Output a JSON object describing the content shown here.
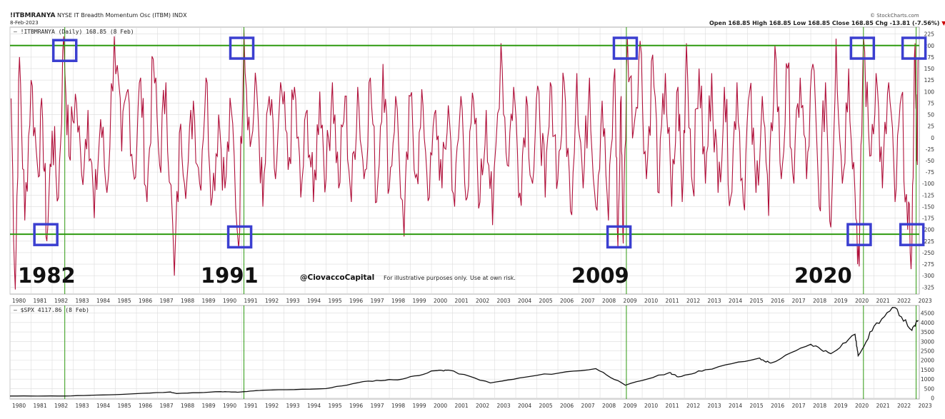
{
  "header": {
    "symbol": "!ITBMRANYA",
    "description": "NYSE IT Breadth Momentum Osc (ITBM) INDX",
    "date": "8-Feb-2023",
    "brand": "© StockCharts.com",
    "ohlc": "Open 168.85  High 168.85  Low 168.85  Close 168.85  Chg -13.81 (-7.56%)",
    "chg_arrow": "▼"
  },
  "colors": {
    "osc_line": "#b0103a",
    "green_line": "#2e9a10",
    "box": "#3b3fd0",
    "grid": "#dcdcdc",
    "spx_line": "#111111"
  },
  "chart_data": [
    {
      "type": "line",
      "legend": "!ITBMRANYA (Daily) 168.85 (8 Feb)",
      "ylim": [
        -340,
        240
      ],
      "yticks": [
        225,
        200,
        175,
        150,
        125,
        100,
        75,
        50,
        25,
        0,
        -25,
        -50,
        -75,
        -100,
        -125,
        -150,
        -175,
        -200,
        -225,
        -250,
        -275,
        -300,
        -325
      ],
      "xlim": [
        1980.0,
        2023.15
      ],
      "xticks": [
        "1980",
        "1981",
        "1982",
        "1983",
        "1984",
        "1985",
        "1986",
        "1987",
        "1988",
        "1989",
        "1990",
        "1991",
        "1992",
        "1993",
        "1994",
        "1995",
        "1996",
        "1997",
        "1998",
        "1999",
        "2000",
        "2001",
        "2002",
        "2003",
        "2004",
        "2005",
        "2006",
        "2007",
        "2008",
        "2009",
        "2010",
        "2011",
        "2012",
        "2013",
        "2014",
        "2015",
        "2016",
        "2017",
        "2018",
        "2019",
        "2020",
        "2021",
        "2022",
        "2023"
      ],
      "hlines": [
        200,
        -210
      ],
      "vlines": [
        1982.6,
        1991.1,
        2009.25,
        2020.5,
        2023.0
      ],
      "highlight_boxes": [
        {
          "x": 1982.6,
          "y": 190
        },
        {
          "x": 1991.0,
          "y": 195
        },
        {
          "x": 2009.2,
          "y": 195
        },
        {
          "x": 2020.45,
          "y": 195
        },
        {
          "x": 2022.9,
          "y": 195
        },
        {
          "x": 1981.7,
          "y": -210
        },
        {
          "x": 1990.9,
          "y": -215
        },
        {
          "x": 2008.9,
          "y": -215
        },
        {
          "x": 2020.3,
          "y": -210
        },
        {
          "x": 2022.8,
          "y": -210
        }
      ],
      "peaks": [
        {
          "x": 1980.05,
          "y": 85
        },
        {
          "x": 1980.25,
          "y": -330
        },
        {
          "x": 1980.45,
          "y": 175
        },
        {
          "x": 1980.7,
          "y": -180
        },
        {
          "x": 1981.0,
          "y": 125
        },
        {
          "x": 1981.3,
          "y": -60
        },
        {
          "x": 1981.55,
          "y": 40
        },
        {
          "x": 1981.75,
          "y": -225
        },
        {
          "x": 1982.0,
          "y": 15
        },
        {
          "x": 1982.3,
          "y": -130
        },
        {
          "x": 1982.55,
          "y": 220
        },
        {
          "x": 1982.8,
          "y": -40
        },
        {
          "x": 1983.1,
          "y": 95
        },
        {
          "x": 1983.4,
          "y": -80
        },
        {
          "x": 1983.7,
          "y": 60
        },
        {
          "x": 1984.0,
          "y": -175
        },
        {
          "x": 1984.3,
          "y": 40
        },
        {
          "x": 1984.6,
          "y": -120
        },
        {
          "x": 1984.95,
          "y": 220
        },
        {
          "x": 1985.3,
          "y": -30
        },
        {
          "x": 1985.6,
          "y": 105
        },
        {
          "x": 1985.9,
          "y": -90
        },
        {
          "x": 1986.2,
          "y": 130
        },
        {
          "x": 1986.5,
          "y": -140
        },
        {
          "x": 1986.8,
          "y": 170
        },
        {
          "x": 1987.1,
          "y": -60
        },
        {
          "x": 1987.4,
          "y": 120
        },
        {
          "x": 1987.8,
          "y": -300
        },
        {
          "x": 1988.1,
          "y": 30
        },
        {
          "x": 1988.4,
          "y": -90
        },
        {
          "x": 1988.7,
          "y": 80
        },
        {
          "x": 1989.0,
          "y": -100
        },
        {
          "x": 1989.3,
          "y": 130
        },
        {
          "x": 1989.6,
          "y": -130
        },
        {
          "x": 1989.9,
          "y": 50
        },
        {
          "x": 1990.2,
          "y": -110
        },
        {
          "x": 1990.5,
          "y": 60
        },
        {
          "x": 1990.85,
          "y": -240
        },
        {
          "x": 1991.1,
          "y": 235
        },
        {
          "x": 1991.4,
          "y": -20
        },
        {
          "x": 1991.7,
          "y": 110
        },
        {
          "x": 1992.0,
          "y": -150
        },
        {
          "x": 1992.3,
          "y": 90
        },
        {
          "x": 1992.6,
          "y": -90
        },
        {
          "x": 1992.9,
          "y": 100
        },
        {
          "x": 1993.2,
          "y": -70
        },
        {
          "x": 1993.5,
          "y": 110
        },
        {
          "x": 1993.8,
          "y": -130
        },
        {
          "x": 1994.1,
          "y": 60
        },
        {
          "x": 1994.4,
          "y": -140
        },
        {
          "x": 1994.7,
          "y": 100
        },
        {
          "x": 1995.0,
          "y": -90
        },
        {
          "x": 1995.3,
          "y": 120
        },
        {
          "x": 1995.6,
          "y": -110
        },
        {
          "x": 1995.9,
          "y": 90
        },
        {
          "x": 1996.2,
          "y": -140
        },
        {
          "x": 1996.5,
          "y": 110
        },
        {
          "x": 1996.8,
          "y": -90
        },
        {
          "x": 1997.1,
          "y": 130
        },
        {
          "x": 1997.4,
          "y": -140
        },
        {
          "x": 1997.7,
          "y": 160
        },
        {
          "x": 1998.0,
          "y": -110
        },
        {
          "x": 1998.3,
          "y": 90
        },
        {
          "x": 1998.7,
          "y": -215
        },
        {
          "x": 1999.0,
          "y": 90
        },
        {
          "x": 1999.3,
          "y": -80
        },
        {
          "x": 1999.6,
          "y": 70
        },
        {
          "x": 1999.9,
          "y": -130
        },
        {
          "x": 2000.2,
          "y": 60
        },
        {
          "x": 2000.5,
          "y": -110
        },
        {
          "x": 2000.8,
          "y": 70
        },
        {
          "x": 2001.1,
          "y": -150
        },
        {
          "x": 2001.4,
          "y": 90
        },
        {
          "x": 2001.7,
          "y": -130
        },
        {
          "x": 2002.0,
          "y": 80
        },
        {
          "x": 2002.3,
          "y": -140
        },
        {
          "x": 2002.6,
          "y": 60
        },
        {
          "x": 2002.9,
          "y": -190
        },
        {
          "x": 2003.3,
          "y": 205
        },
        {
          "x": 2003.6,
          "y": -60
        },
        {
          "x": 2003.9,
          "y": 110
        },
        {
          "x": 2004.2,
          "y": -120
        },
        {
          "x": 2004.5,
          "y": 90
        },
        {
          "x": 2004.8,
          "y": -100
        },
        {
          "x": 2005.1,
          "y": 100
        },
        {
          "x": 2005.4,
          "y": -130
        },
        {
          "x": 2005.7,
          "y": 110
        },
        {
          "x": 2006.0,
          "y": -90
        },
        {
          "x": 2006.3,
          "y": 120
        },
        {
          "x": 2006.6,
          "y": -160
        },
        {
          "x": 2006.9,
          "y": 140
        },
        {
          "x": 2007.2,
          "y": -110
        },
        {
          "x": 2007.5,
          "y": 130
        },
        {
          "x": 2007.8,
          "y": -150
        },
        {
          "x": 2008.1,
          "y": 80
        },
        {
          "x": 2008.4,
          "y": -180
        },
        {
          "x": 2008.7,
          "y": 150
        },
        {
          "x": 2008.85,
          "y": -240
        },
        {
          "x": 2009.0,
          "y": 90
        },
        {
          "x": 2009.1,
          "y": -230
        },
        {
          "x": 2009.3,
          "y": 215
        },
        {
          "x": 2009.6,
          "y": 20
        },
        {
          "x": 2009.9,
          "y": 210
        },
        {
          "x": 2010.2,
          "y": -90
        },
        {
          "x": 2010.5,
          "y": 180
        },
        {
          "x": 2010.8,
          "y": -120
        },
        {
          "x": 2011.1,
          "y": 140
        },
        {
          "x": 2011.4,
          "y": -150
        },
        {
          "x": 2011.7,
          "y": 110
        },
        {
          "x": 2011.9,
          "y": -140
        },
        {
          "x": 2012.1,
          "y": 205
        },
        {
          "x": 2012.4,
          "y": -110
        },
        {
          "x": 2012.7,
          "y": 150
        },
        {
          "x": 2013.0,
          "y": -100
        },
        {
          "x": 2013.3,
          "y": 140
        },
        {
          "x": 2013.6,
          "y": -120
        },
        {
          "x": 2013.9,
          "y": 110
        },
        {
          "x": 2014.2,
          "y": -130
        },
        {
          "x": 2014.5,
          "y": 120
        },
        {
          "x": 2014.8,
          "y": -140
        },
        {
          "x": 2015.1,
          "y": 100
        },
        {
          "x": 2015.4,
          "y": -120
        },
        {
          "x": 2015.7,
          "y": 90
        },
        {
          "x": 2016.0,
          "y": -170
        },
        {
          "x": 2016.3,
          "y": 200
        },
        {
          "x": 2016.6,
          "y": -90
        },
        {
          "x": 2016.9,
          "y": 150
        },
        {
          "x": 2017.2,
          "y": -100
        },
        {
          "x": 2017.5,
          "y": 130
        },
        {
          "x": 2017.8,
          "y": -90
        },
        {
          "x": 2018.1,
          "y": 160
        },
        {
          "x": 2018.4,
          "y": -150
        },
        {
          "x": 2018.7,
          "y": 120
        },
        {
          "x": 2018.95,
          "y": -195
        },
        {
          "x": 2019.2,
          "y": 215
        },
        {
          "x": 2019.5,
          "y": -100
        },
        {
          "x": 2019.8,
          "y": 150
        },
        {
          "x": 2020.1,
          "y": -120
        },
        {
          "x": 2020.3,
          "y": -280
        },
        {
          "x": 2020.5,
          "y": 220
        },
        {
          "x": 2020.8,
          "y": -40
        },
        {
          "x": 2021.1,
          "y": 140
        },
        {
          "x": 2021.4,
          "y": -110
        },
        {
          "x": 2021.7,
          "y": 120
        },
        {
          "x": 2022.0,
          "y": -140
        },
        {
          "x": 2022.3,
          "y": 90
        },
        {
          "x": 2022.6,
          "y": -200
        },
        {
          "x": 2022.8,
          "y": -230
        },
        {
          "x": 2022.95,
          "y": 205
        },
        {
          "x": 2023.05,
          "y": -50
        },
        {
          "x": 2023.1,
          "y": 169
        }
      ]
    },
    {
      "type": "line",
      "legend": "$SPX 4117.86 (8 Feb)",
      "ylim": [
        -50,
        4900
      ],
      "yticks": [
        4500,
        4000,
        3500,
        3000,
        2500,
        2000,
        1500,
        1000,
        500,
        0
      ],
      "points": [
        {
          "x": 1980.0,
          "y": 108
        },
        {
          "x": 1982.6,
          "y": 110
        },
        {
          "x": 1985.0,
          "y": 180
        },
        {
          "x": 1987.6,
          "y": 320
        },
        {
          "x": 1987.9,
          "y": 240
        },
        {
          "x": 1990.0,
          "y": 340
        },
        {
          "x": 1990.8,
          "y": 310
        },
        {
          "x": 1992.0,
          "y": 415
        },
        {
          "x": 1995.0,
          "y": 500
        },
        {
          "x": 1997.0,
          "y": 900
        },
        {
          "x": 1998.6,
          "y": 1000
        },
        {
          "x": 2000.2,
          "y": 1450
        },
        {
          "x": 2000.8,
          "y": 1480
        },
        {
          "x": 2002.8,
          "y": 800
        },
        {
          "x": 2005.0,
          "y": 1200
        },
        {
          "x": 2007.8,
          "y": 1560
        },
        {
          "x": 2009.2,
          "y": 680
        },
        {
          "x": 2011.3,
          "y": 1350
        },
        {
          "x": 2011.7,
          "y": 1120
        },
        {
          "x": 2013.0,
          "y": 1500
        },
        {
          "x": 2015.5,
          "y": 2100
        },
        {
          "x": 2016.1,
          "y": 1850
        },
        {
          "x": 2018.0,
          "y": 2850
        },
        {
          "x": 2018.95,
          "y": 2350
        },
        {
          "x": 2020.1,
          "y": 3380
        },
        {
          "x": 2020.25,
          "y": 2240
        },
        {
          "x": 2021.0,
          "y": 3800
        },
        {
          "x": 2022.0,
          "y": 4790
        },
        {
          "x": 2022.8,
          "y": 3580
        },
        {
          "x": 2023.1,
          "y": 4118
        }
      ]
    }
  ],
  "annotations": {
    "years": [
      "1982",
      "1991",
      "2009",
      "2020"
    ],
    "brand": "@CiovaccoCapital",
    "note1": "For illustrative purposes only.",
    "note2": "Use at own risk."
  }
}
